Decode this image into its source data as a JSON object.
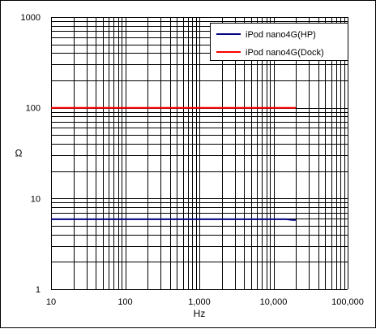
{
  "chart_data": {
    "type": "line",
    "title": "",
    "xlabel": "Hz",
    "ylabel": "Ω",
    "x_scale": "log",
    "y_scale": "log",
    "xlim": [
      10,
      100000
    ],
    "ylim": [
      1,
      1000
    ],
    "x_tick_labels": [
      "10",
      "100",
      "1,000",
      "10,000",
      "100,000"
    ],
    "y_tick_labels": [
      "1",
      "10",
      "100",
      "1000"
    ],
    "grid": true,
    "legend_position": "top-right",
    "series": [
      {
        "name": "iPod nano4G(HP)",
        "color": "#000080",
        "x": [
          10,
          20,
          50,
          100,
          200,
          500,
          1000,
          2000,
          5000,
          10000,
          15000,
          18000,
          20000
        ],
        "y": [
          5.9,
          5.9,
          5.9,
          5.9,
          5.9,
          5.9,
          5.9,
          5.9,
          5.9,
          5.9,
          5.9,
          5.8,
          5.8
        ]
      },
      {
        "name": "iPod nano4G(Dock)",
        "color": "#ff0000",
        "x": [
          10,
          20,
          50,
          100,
          200,
          500,
          1000,
          2000,
          5000,
          10000,
          20000
        ],
        "y": [
          100,
          100,
          100,
          100,
          100,
          100,
          100,
          100,
          100,
          100,
          100
        ]
      }
    ]
  }
}
